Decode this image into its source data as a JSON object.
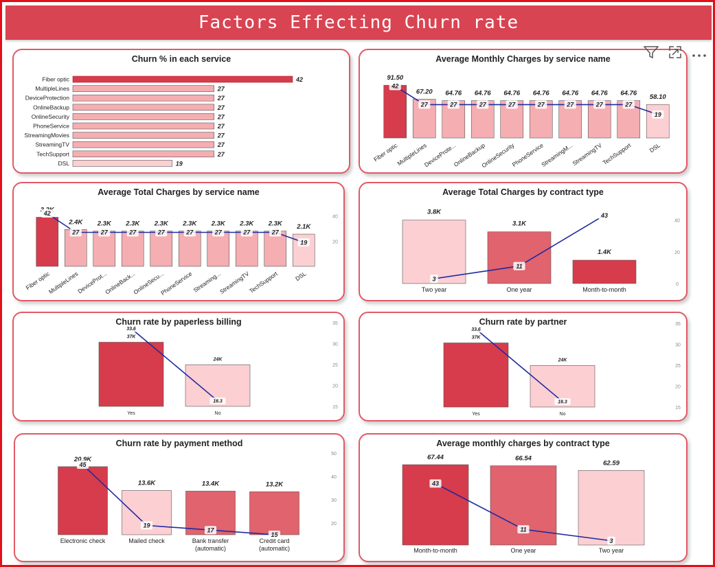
{
  "page_title": "Factors Effecting Churn rate",
  "colors": {
    "dark": "#d63c4b",
    "mid": "#e0636e",
    "light": "#f5aeb2",
    "lighter": "#fccfd2",
    "line": "#1f2aa0",
    "barStroke": "#555555"
  },
  "toolbar": {
    "filter_icon": "filter-icon",
    "focus_icon": "focus-mode-icon",
    "more_icon": "more-options-icon"
  },
  "chart_data": [
    {
      "id": "c1",
      "type": "bar",
      "orientation": "horizontal",
      "title": "Churn % in each service",
      "categories": [
        "Fiber optic",
        "MultipleLines",
        "DeviceProtection",
        "OnlineBackup",
        "OnlineSecurity",
        "PhoneService",
        "StreamingMovies",
        "StreamingTV",
        "TechSupport",
        "DSL"
      ],
      "values": [
        42,
        27,
        27,
        27,
        27,
        27,
        27,
        27,
        27,
        19
      ],
      "value_labels": [
        "42",
        "27",
        "27",
        "27",
        "27",
        "27",
        "27",
        "27",
        "27",
        "19"
      ],
      "xlim": [
        0,
        42
      ]
    },
    {
      "id": "c2",
      "type": "bar",
      "title": "Average Monthly Charges by service name",
      "categories": [
        "Fiber optic",
        "MultipleLines",
        "DeviceProte...",
        "OnlineBackup",
        "OnlineSecurity",
        "PhoneService",
        "StreamingM...",
        "StreamingTV",
        "TechSupport",
        "DSL"
      ],
      "series": [
        {
          "values": [
            91.5,
            67.2,
            64.76,
            64.76,
            64.76,
            64.76,
            64.76,
            64.76,
            64.76,
            58.1
          ],
          "labels": [
            "91.50",
            "67.20",
            "64.76",
            "64.76",
            "64.76",
            "64.76",
            "64.76",
            "64.76",
            "64.76",
            "58.10"
          ]
        },
        {
          "type": "line",
          "values": [
            42,
            27,
            27,
            27,
            27,
            27,
            27,
            27,
            27,
            19
          ],
          "labels": [
            "42",
            "27",
            "27",
            "27",
            "27",
            "27",
            "27",
            "27",
            "27",
            "19"
          ]
        }
      ],
      "ylim": [
        0,
        100
      ],
      "y2lim": [
        0,
        60
      ]
    },
    {
      "id": "c3",
      "type": "bar",
      "title": "Average Total Charges by service name",
      "categories": [
        "Fiber optic",
        "MultipleLines",
        "DeviceProt...",
        "OnlineBack...",
        "OnlineSecu...",
        "PhoneService",
        "Streaming...",
        "StreamingTV",
        "TechSupport",
        "DSL"
      ],
      "series": [
        {
          "values": [
            3200,
            2400,
            2300,
            2300,
            2300,
            2300,
            2300,
            2300,
            2300,
            2100
          ],
          "labels": [
            "3.2K",
            "2.4K",
            "2.3K",
            "2.3K",
            "2.3K",
            "2.3K",
            "2.3K",
            "2.3K",
            "2.3K",
            "2.1K"
          ]
        },
        {
          "type": "line",
          "values": [
            42,
            27,
            27,
            27,
            27,
            27,
            27,
            27,
            27,
            19
          ],
          "labels": [
            "42",
            "27",
            "27",
            "27",
            "27",
            "27",
            "27",
            "27",
            "27",
            "19"
          ]
        }
      ],
      "ylim": [
        0,
        3400
      ],
      "y2lim": [
        0,
        48
      ],
      "y2ticks": [
        "40",
        "20"
      ]
    },
    {
      "id": "c4",
      "type": "bar",
      "title": "Average Total Charges by contract type",
      "categories": [
        "Two year",
        "One year",
        "Month-to-month"
      ],
      "series": [
        {
          "values": [
            3800,
            3100,
            1400
          ],
          "labels": [
            "3.8K",
            "3.1K",
            "1.4K"
          ]
        },
        {
          "type": "line",
          "values": [
            3,
            11,
            43
          ],
          "labels": [
            "3",
            "11",
            "43"
          ]
        }
      ],
      "ylim": [
        0,
        4200
      ],
      "y2lim": [
        0,
        45
      ],
      "y2ticks": [
        "40",
        "20",
        "0"
      ]
    },
    {
      "id": "c5",
      "type": "bar",
      "title": "Churn rate by paperless billing",
      "categories": [
        "Yes",
        "No"
      ],
      "series": [
        {
          "values": [
            37000,
            24000
          ],
          "labels": [
            "37K",
            "24K"
          ]
        },
        {
          "type": "line",
          "values": [
            33.6,
            16.3
          ],
          "labels": [
            "33.6",
            "16.3"
          ]
        }
      ],
      "ylim": [
        0,
        38000
      ],
      "y2lim": [
        15,
        35
      ],
      "y2ticks": [
        "35",
        "30",
        "25",
        "20",
        "15"
      ]
    },
    {
      "id": "c6",
      "type": "bar",
      "title": "Churn rate by partner",
      "categories": [
        "Yes",
        "No"
      ],
      "series": [
        {
          "values": [
            37000,
            24000
          ],
          "labels": [
            "37K",
            "24K"
          ]
        },
        {
          "type": "line",
          "values": [
            33.6,
            16.3
          ],
          "labels": [
            "33.6",
            "16.3"
          ]
        }
      ],
      "ylim": [
        0,
        38000
      ],
      "y2lim": [
        15,
        35
      ],
      "y2ticks": [
        "35",
        "30",
        "25",
        "20",
        "15"
      ]
    },
    {
      "id": "c7",
      "type": "bar",
      "title": "Churn rate by payment method",
      "categories": [
        "Electronic check",
        "Mailed check",
        "Bank transfer (automatic)",
        "Credit card (automatic)"
      ],
      "series": [
        {
          "values": [
            20900,
            13600,
            13400,
            13200
          ],
          "labels": [
            "20.9K",
            "13.6K",
            "13.4K",
            "13.2K"
          ]
        },
        {
          "type": "line",
          "values": [
            45,
            19,
            17,
            15
          ],
          "labels": [
            "45",
            "19",
            "17",
            "15"
          ]
        }
      ],
      "ylim": [
        0,
        21500
      ],
      "y2lim": [
        15,
        50
      ],
      "y2ticks": [
        "50",
        "40",
        "30",
        "20"
      ]
    },
    {
      "id": "c8",
      "type": "bar",
      "title": "Average monthly charges by contract type",
      "categories": [
        "Month-to-month",
        "One year",
        "Two year"
      ],
      "series": [
        {
          "values": [
            67.44,
            66.54,
            62.59
          ],
          "labels": [
            "67.44",
            "66.54",
            "62.59"
          ]
        },
        {
          "type": "line",
          "values": [
            43,
            11,
            3
          ],
          "labels": [
            "43",
            "11",
            "3"
          ]
        }
      ],
      "ylim": [
        0,
        68
      ],
      "y2lim": [
        0,
        48
      ]
    }
  ]
}
